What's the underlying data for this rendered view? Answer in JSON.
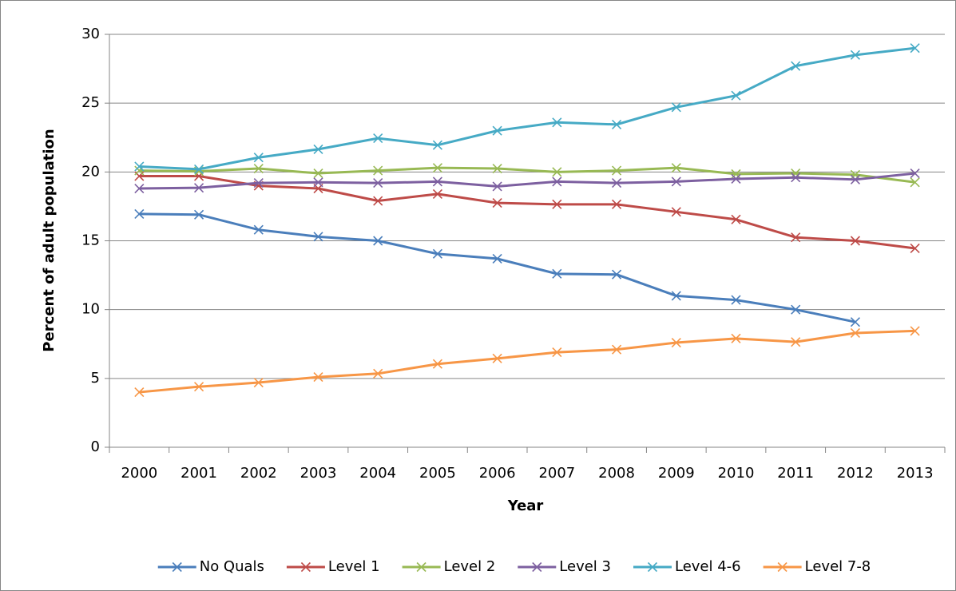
{
  "chart_data": {
    "type": "line",
    "x_label": "Year",
    "y_label": "Percent of adult population",
    "categories": [
      "2000",
      "2001",
      "2002",
      "2003",
      "2004",
      "2005",
      "2006",
      "2007",
      "2008",
      "2009",
      "2010",
      "2011",
      "2012",
      "2013"
    ],
    "ylim": [
      0,
      30
    ],
    "yticks": [
      0,
      5,
      10,
      15,
      20,
      25,
      30
    ],
    "grid": true,
    "legend": "bottom",
    "series": [
      {
        "name": "No Quals",
        "color": "#4a7ebb",
        "values": [
          16.95,
          16.9,
          15.8,
          15.3,
          15.0,
          14.05,
          13.7,
          12.6,
          12.55,
          11.0,
          10.7,
          10.0,
          9.1,
          null
        ]
      },
      {
        "name": "Level 1",
        "color": "#be4b48",
        "values": [
          19.7,
          19.7,
          19.0,
          18.8,
          17.9,
          18.4,
          17.75,
          17.65,
          17.65,
          17.1,
          16.55,
          15.25,
          15.0,
          14.45
        ]
      },
      {
        "name": "Level 2",
        "color": "#98b954",
        "values": [
          20.1,
          20.05,
          20.25,
          19.9,
          20.1,
          20.3,
          20.25,
          20.0,
          20.1,
          20.3,
          19.85,
          19.9,
          19.8,
          19.25
        ]
      },
      {
        "name": "Level 3",
        "color": "#7d60a0",
        "values": [
          18.8,
          18.85,
          19.2,
          19.25,
          19.2,
          19.3,
          18.95,
          19.3,
          19.2,
          19.3,
          19.5,
          19.6,
          19.45,
          19.9
        ]
      },
      {
        "name": "Level 4-6",
        "color": "#46aac5",
        "values": [
          20.4,
          20.2,
          21.05,
          21.65,
          22.45,
          21.95,
          23.0,
          23.6,
          23.45,
          24.7,
          25.55,
          27.7,
          28.5,
          29.0
        ]
      },
      {
        "name": "Level 7-8",
        "color": "#f79646",
        "values": [
          4.0,
          4.4,
          4.7,
          5.1,
          5.35,
          6.05,
          6.45,
          6.9,
          7.1,
          7.6,
          7.9,
          7.65,
          8.3,
          8.45
        ]
      }
    ]
  }
}
